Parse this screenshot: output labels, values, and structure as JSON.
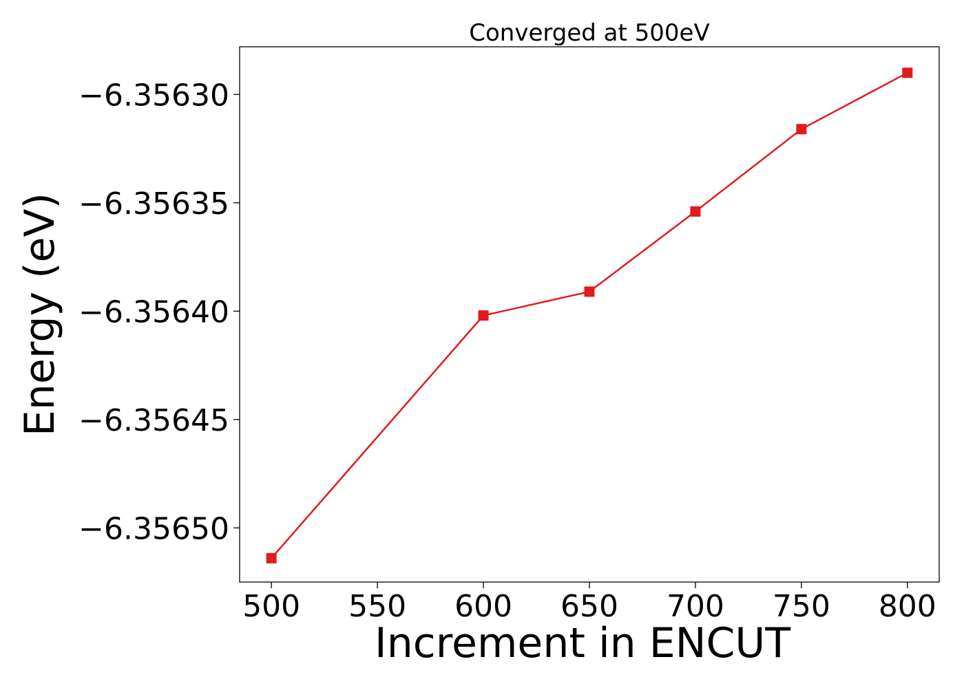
{
  "chart_data": {
    "type": "line",
    "title": "Converged at 500eV",
    "xlabel": "Increment in ENCUT",
    "ylabel": "Energy (eV)",
    "x": [
      500,
      600,
      650,
      700,
      750,
      800
    ],
    "series": [
      {
        "values": [
          -6.356514,
          -6.356402,
          -6.356391,
          -6.356354,
          -6.356316,
          -6.35629
        ],
        "color": "#e31a1c",
        "marker": "square"
      }
    ],
    "xticks": [
      500,
      550,
      600,
      650,
      700,
      750,
      800
    ],
    "xtick_labels": [
      "500",
      "550",
      "600",
      "650",
      "700",
      "750",
      "800"
    ],
    "yticks": [
      -6.3565,
      -6.35645,
      -6.3564,
      -6.35635,
      -6.3563
    ],
    "ytick_labels": [
      "−6.35650",
      "−6.35645",
      "−6.35640",
      "−6.35635",
      "−6.35630"
    ],
    "xlim": [
      485,
      815
    ],
    "ylim": [
      -6.356525,
      -6.356278
    ],
    "grid": false,
    "legend": "none"
  }
}
